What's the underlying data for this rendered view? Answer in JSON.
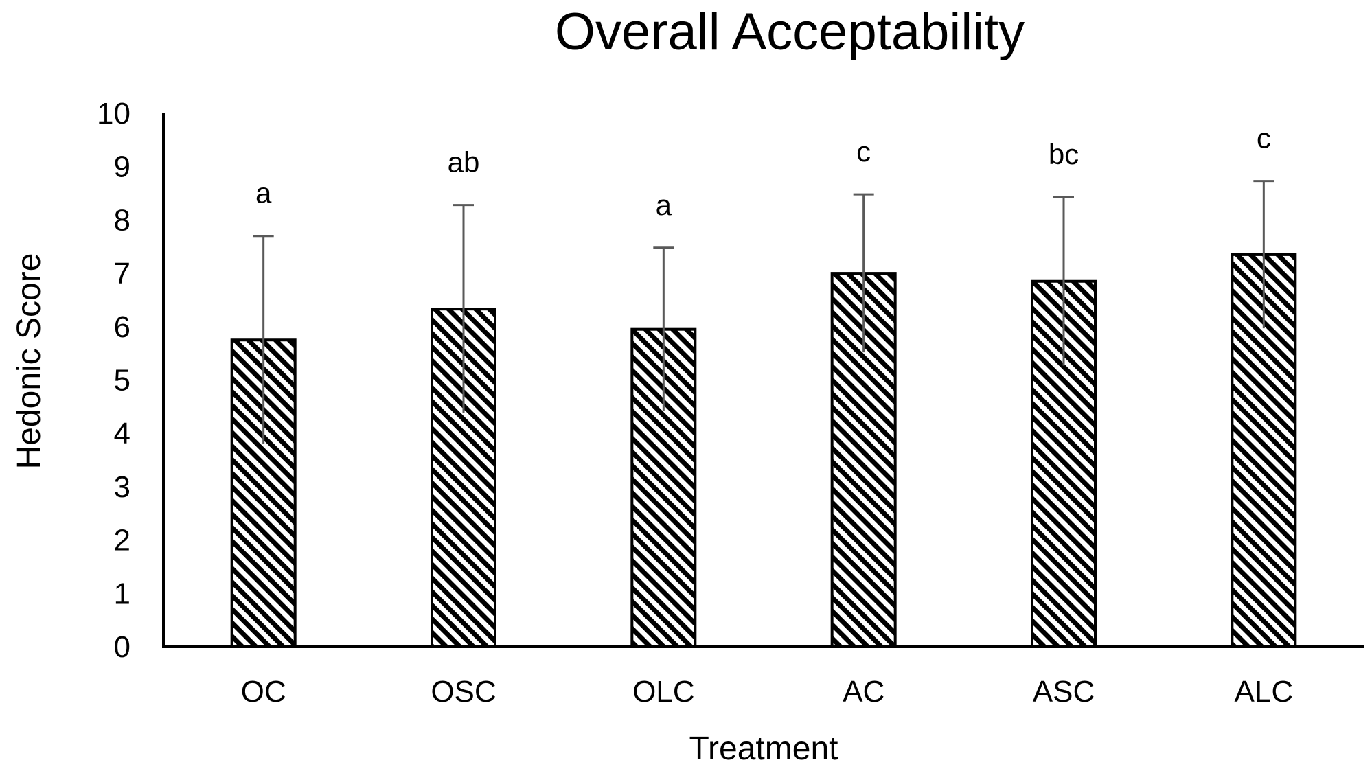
{
  "chart_data": {
    "type": "bar",
    "title": "Overall Acceptability",
    "xlabel": "Treatment",
    "ylabel": "Hedonic Score",
    "categories": [
      "OC",
      "OSC",
      "OLC",
      "AC",
      "ASC",
      "ALC"
    ],
    "series": [
      {
        "name": "Overall Acceptability",
        "values": [
          5.75,
          6.33,
          5.95,
          7.0,
          6.85,
          7.35
        ],
        "error": [
          1.95,
          1.95,
          1.53,
          1.48,
          1.58,
          1.38
        ],
        "significance": [
          "a",
          "ab",
          "a",
          "c",
          "bc",
          "c"
        ]
      }
    ],
    "ylim": [
      0,
      10
    ],
    "yticks": [
      0,
      1,
      2,
      3,
      4,
      5,
      6,
      7,
      8,
      9,
      10
    ],
    "grid": false,
    "legend": "none",
    "bar_pattern": "diagonal-hatch",
    "colors": {
      "bar_fill": "#000000",
      "bar_background": "#ffffff",
      "error_bar": "#595959",
      "axis": "#000000"
    }
  }
}
